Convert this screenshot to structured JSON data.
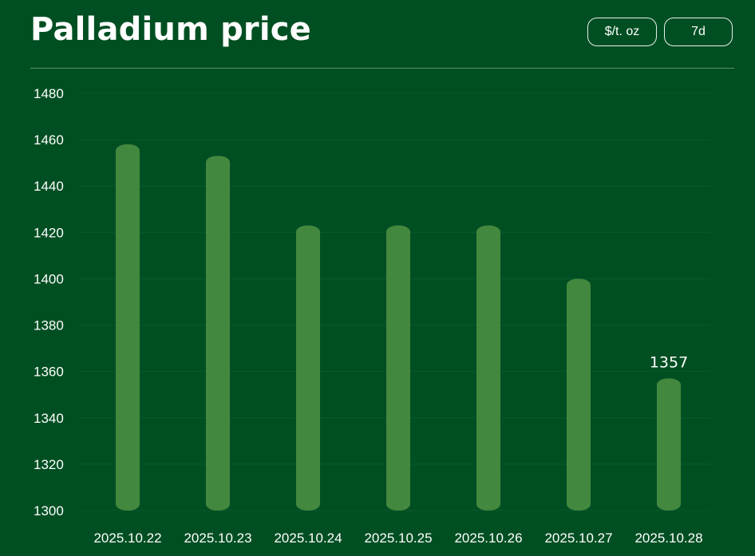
{
  "header": {
    "title": "Palladium price",
    "unit_button": "$/t. oz",
    "range_button": "7d"
  },
  "colors": {
    "background": "#004f22",
    "bar": "#43883f",
    "text": "#ffffff",
    "grid": "#0b5a2b"
  },
  "chart_data": {
    "type": "bar",
    "categories": [
      "2025.10.22",
      "2025.10.23",
      "2025.10.24",
      "2025.10.25",
      "2025.10.26",
      "2025.10.27",
      "2025.10.28"
    ],
    "values": [
      1458,
      1453,
      1423,
      1423,
      1423,
      1400,
      1357
    ],
    "ylim": [
      1300,
      1480
    ],
    "yticks": [
      1300,
      1320,
      1340,
      1360,
      1380,
      1400,
      1420,
      1440,
      1460,
      1480
    ],
    "grid": true,
    "data_labels": [
      {
        "index": 6,
        "text": "1357"
      }
    ]
  }
}
